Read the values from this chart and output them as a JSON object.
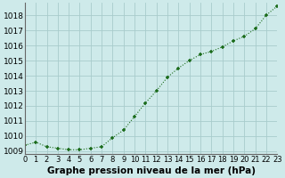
{
  "x": [
    0,
    1,
    2,
    3,
    4,
    5,
    6,
    7,
    8,
    9,
    10,
    11,
    12,
    13,
    14,
    15,
    16,
    17,
    18,
    19,
    20,
    21,
    22,
    23
  ],
  "y": [
    1009.4,
    1009.6,
    1009.3,
    1009.2,
    1009.1,
    1009.1,
    1009.2,
    1009.3,
    1009.9,
    1010.4,
    1011.3,
    1012.2,
    1013.0,
    1013.9,
    1014.5,
    1015.0,
    1015.4,
    1015.6,
    1015.9,
    1016.3,
    1016.6,
    1017.1,
    1018.0,
    1018.6
  ],
  "line_color": "#1a6b1a",
  "marker": "+",
  "marker_size": 3.5,
  "marker_linewidth": 1.1,
  "line_width": 0.8,
  "background_color": "#ceeaea",
  "grid_color": "#a8cccc",
  "xlabel": "Graphe pression niveau de la mer (hPa)",
  "xlabel_fontsize": 7.5,
  "ylabel_fontsize": 6.5,
  "tick_fontsize": 6,
  "ylim": [
    1008.8,
    1018.8
  ],
  "yticks": [
    1009,
    1010,
    1011,
    1012,
    1013,
    1014,
    1015,
    1016,
    1017,
    1018
  ],
  "xlim": [
    0,
    23
  ],
  "xticks": [
    0,
    1,
    2,
    3,
    4,
    5,
    6,
    7,
    8,
    9,
    10,
    11,
    12,
    13,
    14,
    15,
    16,
    17,
    18,
    19,
    20,
    21,
    22,
    23
  ],
  "spine_color": "#666666"
}
